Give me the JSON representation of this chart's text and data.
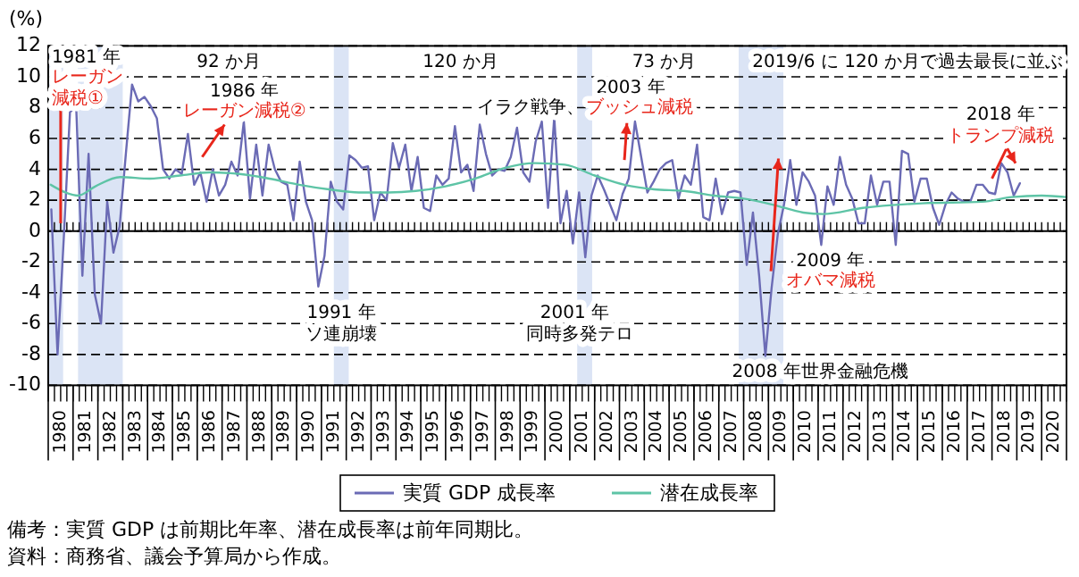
{
  "chart_data": {
    "type": "line",
    "ylabel": "(%)",
    "xlim": [
      1980,
      2021
    ],
    "ylim": [
      -10,
      12
    ],
    "yticks": [
      -10,
      -8,
      -6,
      -4,
      -2,
      0,
      2,
      4,
      6,
      8,
      10,
      12
    ],
    "xticks": [
      {
        "value": 1980.5,
        "label": "1980"
      },
      {
        "value": 1981.5,
        "label": "1981"
      },
      {
        "value": 1982.5,
        "label": "1982"
      },
      {
        "value": 1983.5,
        "label": "1983"
      },
      {
        "value": 1984.5,
        "label": "1984"
      },
      {
        "value": 1985.5,
        "label": "1985"
      },
      {
        "value": 1986.5,
        "label": "1986"
      },
      {
        "value": 1987.5,
        "label": "1987"
      },
      {
        "value": 1988.5,
        "label": "1988"
      },
      {
        "value": 1989.5,
        "label": "1989"
      },
      {
        "value": 1990.5,
        "label": "1990"
      },
      {
        "value": 1991.5,
        "label": "1991"
      },
      {
        "value": 1992.5,
        "label": "1992"
      },
      {
        "value": 1993.5,
        "label": "1993"
      },
      {
        "value": 1994.5,
        "label": "1994"
      },
      {
        "value": 1995.5,
        "label": "1995"
      },
      {
        "value": 1996.5,
        "label": "1996"
      },
      {
        "value": 1997.5,
        "label": "1997"
      },
      {
        "value": 1998.5,
        "label": "1998"
      },
      {
        "value": 1999.5,
        "label": "1999"
      },
      {
        "value": 2000.5,
        "label": "2000"
      },
      {
        "value": 2001.5,
        "label": "2001"
      },
      {
        "value": 2002.5,
        "label": "2002"
      },
      {
        "value": 2003.5,
        "label": "2003"
      },
      {
        "value": 2004.5,
        "label": "2004"
      },
      {
        "value": 2005.5,
        "label": "2005"
      },
      {
        "value": 2006.5,
        "label": "2006"
      },
      {
        "value": 2007.5,
        "label": "2007"
      },
      {
        "value": 2008.5,
        "label": "2008"
      },
      {
        "value": 2009.5,
        "label": "2009"
      },
      {
        "value": 2010.5,
        "label": "2010"
      },
      {
        "value": 2011.5,
        "label": "2011"
      },
      {
        "value": 2012.5,
        "label": "2012"
      },
      {
        "value": 2013.5,
        "label": "2013"
      },
      {
        "value": 2014.5,
        "label": "2014"
      },
      {
        "value": 2015.5,
        "label": "2015"
      },
      {
        "value": 2016.5,
        "label": "2016"
      },
      {
        "value": 2017.5,
        "label": "2017"
      },
      {
        "value": 2018.5,
        "label": "2018"
      },
      {
        "value": 2019.5,
        "label": "2019"
      },
      {
        "value": 2020.5,
        "label": "2020"
      }
    ],
    "grid": "y",
    "legend": "bottom",
    "bands": [
      {
        "axis": "x",
        "from": 1980.0,
        "to": 1980.6,
        "color": "#dbe4f5"
      },
      {
        "axis": "x",
        "from": 1981.2,
        "to": 1983.0,
        "color": "#dbe4f5"
      },
      {
        "axis": "x",
        "from": 1991.5,
        "to": 1992.1,
        "color": "#dbe4f5"
      },
      {
        "axis": "x",
        "from": 2001.3,
        "to": 2001.9,
        "color": "#dbe4f5"
      },
      {
        "axis": "x",
        "from": 2007.8,
        "to": 2009.6,
        "color": "#dbe4f5"
      }
    ],
    "series": [
      {
        "name": "実質 GDP 成長率",
        "color": "#6b6bb5",
        "x": [
          1980.125,
          1980.375,
          1980.625,
          1980.875,
          1981.125,
          1981.375,
          1981.625,
          1981.875,
          1982.125,
          1982.375,
          1982.625,
          1982.875,
          1983.125,
          1983.375,
          1983.625,
          1983.875,
          1984.125,
          1984.375,
          1984.625,
          1984.875,
          1985.125,
          1985.375,
          1985.625,
          1985.875,
          1986.125,
          1986.375,
          1986.625,
          1986.875,
          1987.125,
          1987.375,
          1987.625,
          1987.875,
          1988.125,
          1988.375,
          1988.625,
          1988.875,
          1989.125,
          1989.375,
          1989.625,
          1989.875,
          1990.125,
          1990.375,
          1990.625,
          1990.875,
          1991.125,
          1991.375,
          1991.625,
          1991.875,
          1992.125,
          1992.375,
          1992.625,
          1992.875,
          1993.125,
          1993.375,
          1993.625,
          1993.875,
          1994.125,
          1994.375,
          1994.625,
          1994.875,
          1995.125,
          1995.375,
          1995.625,
          1995.875,
          1996.125,
          1996.375,
          1996.625,
          1996.875,
          1997.125,
          1997.375,
          1997.625,
          1997.875,
          1998.125,
          1998.375,
          1998.625,
          1998.875,
          1999.125,
          1999.375,
          1999.625,
          1999.875,
          2000.125,
          2000.375,
          2000.625,
          2000.875,
          2001.125,
          2001.375,
          2001.625,
          2001.875,
          2002.125,
          2002.375,
          2002.625,
          2002.875,
          2003.125,
          2003.375,
          2003.625,
          2003.875,
          2004.125,
          2004.375,
          2004.625,
          2004.875,
          2005.125,
          2005.375,
          2005.625,
          2005.875,
          2006.125,
          2006.375,
          2006.625,
          2006.875,
          2007.125,
          2007.375,
          2007.625,
          2007.875,
          2008.125,
          2008.375,
          2008.625,
          2008.875,
          2009.125,
          2009.375,
          2009.625,
          2009.875,
          2010.125,
          2010.375,
          2010.625,
          2010.875,
          2011.125,
          2011.375,
          2011.625,
          2011.875,
          2012.125,
          2012.375,
          2012.625,
          2012.875,
          2013.125,
          2013.375,
          2013.625,
          2013.875,
          2014.125,
          2014.375,
          2014.625,
          2014.875,
          2015.125,
          2015.375,
          2015.625,
          2015.875,
          2016.125,
          2016.375,
          2016.625,
          2016.875,
          2017.125,
          2017.375,
          2017.625,
          2017.875,
          2018.125,
          2018.375,
          2018.625,
          2018.875,
          2019.125
        ],
        "values": [
          1.4,
          -8.0,
          -0.5,
          7.7,
          8.1,
          -2.9,
          5.0,
          -4.1,
          -6.0,
          1.9,
          -1.4,
          0.3,
          5.0,
          9.5,
          8.4,
          8.7,
          8.1,
          7.3,
          4.0,
          3.4,
          4.0,
          3.7,
          6.3,
          3.0,
          3.8,
          1.9,
          4.0,
          2.3,
          3.0,
          4.5,
          3.6,
          7.1,
          2.1,
          5.6,
          2.3,
          5.6,
          4.0,
          3.2,
          3.0,
          0.7,
          4.5,
          1.9,
          0.7,
          -3.6,
          -1.6,
          3.2,
          1.9,
          1.4,
          4.9,
          4.6,
          4.1,
          4.2,
          0.7,
          2.5,
          2.0,
          5.7,
          4.1,
          5.6,
          2.6,
          4.8,
          1.5,
          1.3,
          3.6,
          3.0,
          3.4,
          6.8,
          3.8,
          4.3,
          2.6,
          6.9,
          5.0,
          3.6,
          4.0,
          3.9,
          4.8,
          6.7,
          3.8,
          3.2,
          5.8,
          7.1,
          1.5,
          7.4,
          0.5,
          2.6,
          -0.8,
          2.5,
          -1.7,
          2.3,
          3.6,
          2.7,
          1.7,
          0.7,
          2.4,
          3.4,
          7.1,
          4.8,
          2.5,
          3.2,
          4.0,
          4.4,
          4.6,
          2.1,
          3.6,
          3.0,
          5.6,
          0.9,
          0.7,
          3.4,
          1.1,
          2.5,
          2.6,
          2.5,
          -2.2,
          1.2,
          -2.9,
          -8.1,
          -3.7,
          -0.2,
          1.7,
          4.6,
          1.7,
          3.8,
          3.2,
          2.3,
          -0.9,
          2.9,
          1.7,
          4.8,
          3.0,
          2.1,
          0.5,
          0.5,
          3.6,
          1.7,
          3.2,
          3.2,
          -0.9,
          5.2,
          5.0,
          1.9,
          3.4,
          3.4,
          1.5,
          0.4,
          1.7,
          2.5,
          2.1,
          1.9,
          1.9,
          3.0,
          3.0,
          2.5,
          2.4,
          4.4,
          3.8,
          2.3,
          3.1
        ]
      },
      {
        "name": "潜在成長率",
        "color": "#5ec4a6",
        "x": [
          1980.1,
          1980.7,
          1981.2,
          1981.9,
          1982.9,
          1984.1,
          1985.3,
          1986.5,
          1987.7,
          1988.9,
          1990.1,
          1991.3,
          1992.5,
          1993.7,
          1994.8,
          1996.0,
          1997.2,
          1998.4,
          1999.6,
          2000.8,
          2002.0,
          2003.2,
          2004.4,
          2005.6,
          2006.8,
          2008.0,
          2009.2,
          2010.4,
          2011.2,
          2012.8,
          2015.2,
          2017.6,
          2018.8,
          2020.0,
          2021.0
        ],
        "values": [
          3.0,
          2.5,
          2.3,
          2.9,
          3.5,
          3.4,
          3.6,
          3.8,
          3.7,
          3.4,
          3.0,
          2.7,
          2.5,
          2.5,
          2.6,
          2.9,
          3.4,
          4.1,
          4.4,
          4.3,
          3.6,
          3.0,
          2.7,
          2.6,
          2.3,
          2.1,
          1.7,
          1.2,
          1.1,
          1.5,
          1.8,
          1.9,
          2.2,
          2.3,
          2.2
        ]
      }
    ],
    "annotations": [
      "1981 年",
      {
        "text": "レーガン減税①",
        "x": 1980.5,
        "y": 8.6
      },
      "92 か月",
      "120 か月",
      "73 か月",
      "2019/6 に 120 か月で過去最長に並ぶ",
      "1986 年",
      "レーガン減税②",
      "2003 年",
      "イラク戦争、",
      {
        "text": "ブッシュ減税",
        "x": 2003.3,
        "y": 7.0
      },
      "1991 年",
      "ソ連崩壊",
      "2001 年",
      "同時多発テロ",
      "2008 年世界金融危機",
      "2009 年",
      {
        "text": "オバマ減税",
        "x": 2009.4,
        "y": 4.7
      },
      "2018 年",
      {
        "text": "トランプ減税",
        "x": 2018.95,
        "y": 4.4
      },
      "備考：実質 GDP は前期比年率、潜在成長率は前年同期比。",
      "資料：商務省、議会予算局から作成。"
    ]
  }
}
